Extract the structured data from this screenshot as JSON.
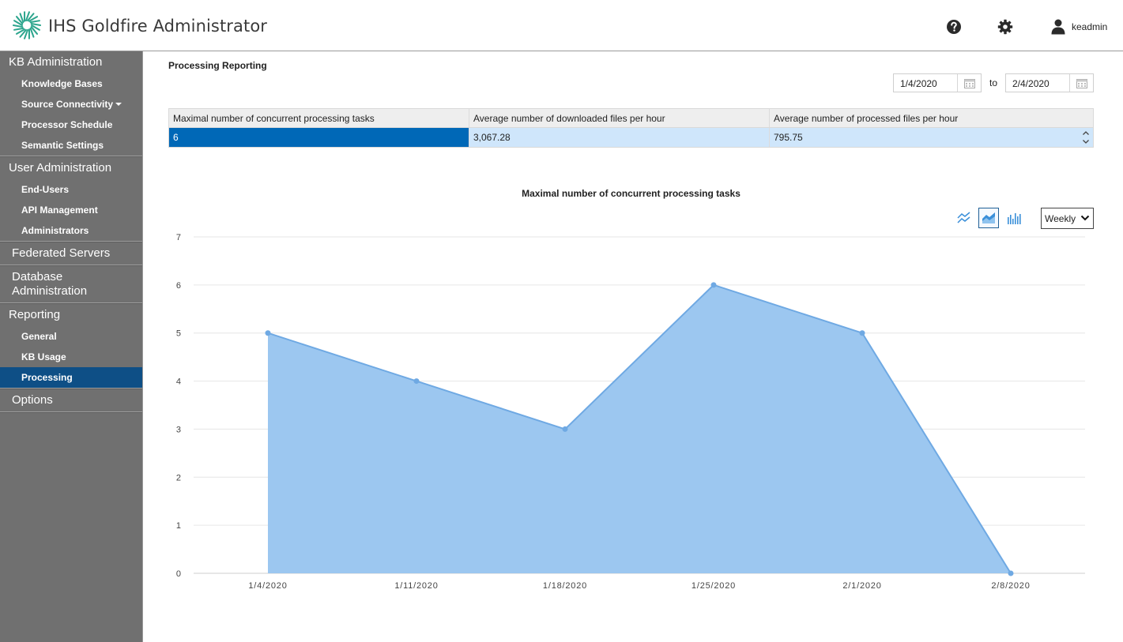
{
  "header": {
    "app_title": "IHS Goldfire Administrator",
    "help_icon": "help-circle-icon",
    "settings_icon": "gear-icon",
    "user_icon": "user-icon",
    "username": "keadmin",
    "logo_color": "#2ca58d"
  },
  "sidebar": {
    "kb_admin": {
      "label": "KB Administration",
      "items": [
        "Knowledge Bases",
        "Source Connectivity",
        "Processor Schedule",
        "Semantic Settings"
      ]
    },
    "user_admin": {
      "label": "User Administration",
      "items": [
        "End-Users",
        "API Management",
        "Administrators"
      ]
    },
    "federated": {
      "label": "Federated Servers"
    },
    "database": {
      "label": "Database Administration"
    },
    "reporting": {
      "label": "Reporting",
      "items": [
        "General",
        "KB Usage",
        "Processing"
      ],
      "active": "Processing"
    },
    "options": {
      "label": "Options"
    },
    "active_color": "#0e4f86",
    "bg_color": "#707070"
  },
  "main": {
    "page_title": "Processing Reporting",
    "date_from": "1/4/2020",
    "date_to": "2/4/2020",
    "to_label": "to",
    "table": {
      "headers": [
        "Maximal number of concurrent processing tasks",
        "Average number of downloaded files per hour",
        "Average number of processed files per hour"
      ],
      "rows": [
        [
          "6",
          "3,067.28",
          "795.75"
        ]
      ]
    },
    "chart_controls": {
      "line_button": "line-chart-icon",
      "area_button": "area-chart-icon",
      "bar_button": "bar-chart-icon",
      "selected": "area",
      "period": "Weekly"
    }
  },
  "chart_data": {
    "type": "area",
    "title": "Maximal number of concurrent processing tasks",
    "categories": [
      "1/4/2020",
      "1/11/2020",
      "1/18/2020",
      "1/25/2020",
      "2/1/2020",
      "2/8/2020"
    ],
    "values": [
      5,
      4,
      3,
      6,
      5,
      0
    ],
    "ylim": [
      0,
      7
    ],
    "yticks": [
      0,
      1,
      2,
      3,
      4,
      5,
      6,
      7
    ],
    "grid": true,
    "fill_color": "#9cc7f0",
    "line_color": "#6fa9e3"
  }
}
